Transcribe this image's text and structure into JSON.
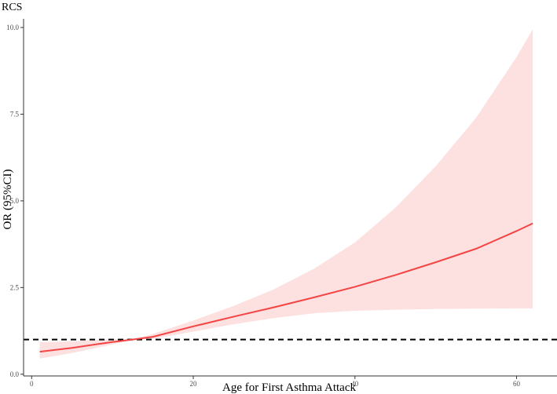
{
  "chart_data": {
    "type": "line",
    "title": "RCS",
    "xlabel": "Age for First Asthma Attack",
    "ylabel": "OR (95%CI)",
    "xlim": [
      -1,
      65
    ],
    "ylim": [
      -0.05,
      10.25
    ],
    "x_ticks": [
      0,
      20,
      40,
      60
    ],
    "y_ticks": [
      0.0,
      2.5,
      5.0,
      7.5,
      10.0
    ],
    "x_tick_labels": [
      "0",
      "20",
      "40",
      "60"
    ],
    "y_tick_labels": [
      "0.0",
      "2.5",
      "5.0",
      "7.5",
      "10.0"
    ],
    "reference_line": {
      "y": 1,
      "style": "dashed",
      "color": "#000000"
    },
    "grid": false,
    "series": [
      {
        "x": [
          1,
          5,
          10,
          12.5,
          15,
          20,
          25,
          30,
          35,
          40,
          45,
          50,
          55,
          60,
          62
        ],
        "y": [
          0.65,
          0.76,
          0.93,
          1.0,
          1.08,
          1.38,
          1.66,
          1.93,
          2.22,
          2.52,
          2.86,
          3.23,
          3.62,
          4.13,
          4.35
        ],
        "lower": [
          0.45,
          0.61,
          0.86,
          1.0,
          1.02,
          1.23,
          1.44,
          1.62,
          1.76,
          1.83,
          1.86,
          1.88,
          1.89,
          1.9,
          1.9
        ],
        "upper": [
          0.92,
          0.95,
          1.01,
          1.0,
          1.16,
          1.55,
          1.97,
          2.45,
          3.05,
          3.8,
          4.8,
          6.0,
          7.4,
          9.15,
          9.95
        ]
      }
    ],
    "colors": {
      "line": "#f44444",
      "ribbon": "#fde0e0",
      "reference": "#000000",
      "axis": "#333333"
    }
  }
}
